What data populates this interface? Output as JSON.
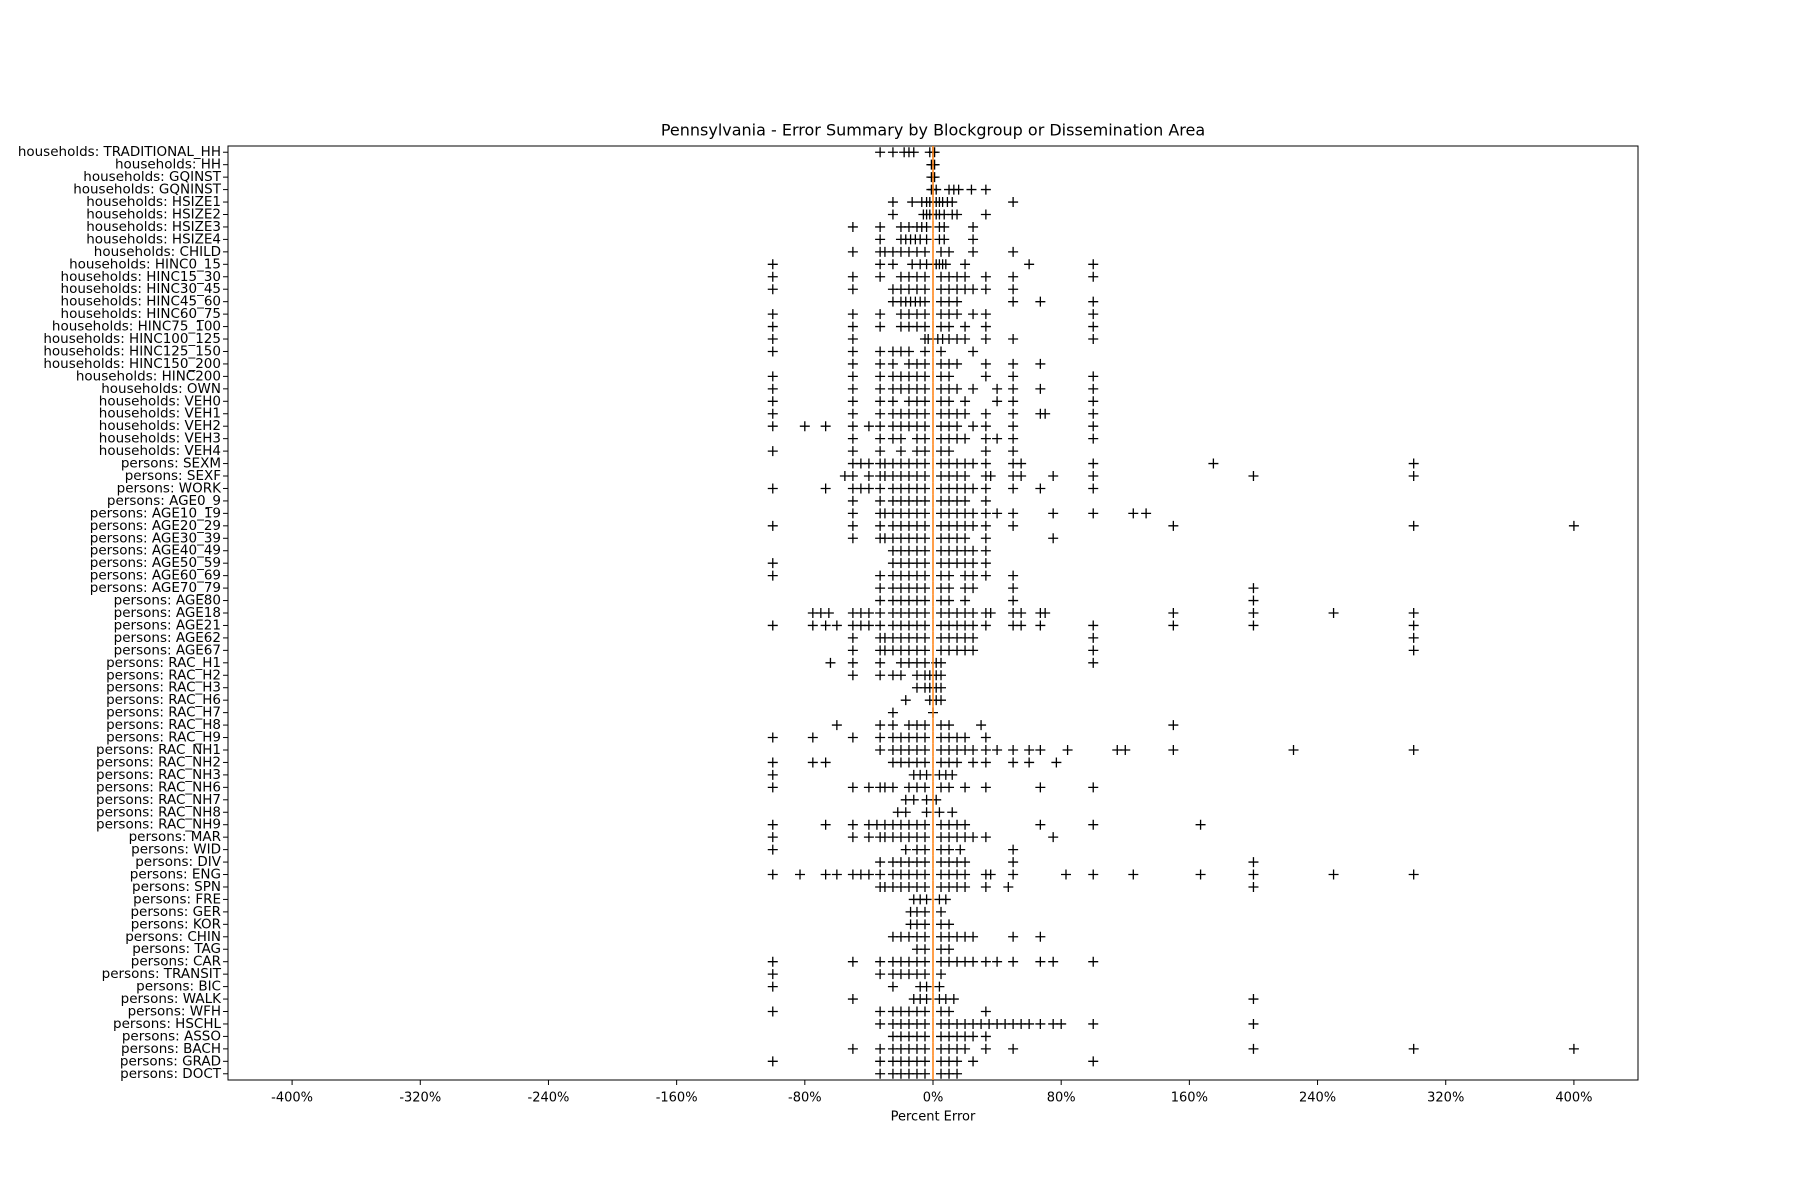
{
  "chart_data": {
    "type": "box",
    "title": "Pennsylvania - Error Summary by Blockgroup or Dissemination Area",
    "x_label": "Percent Error",
    "xlim": [
      -440,
      440
    ],
    "xticks": [
      {
        "value": -400,
        "label": "-400%"
      },
      {
        "value": -320,
        "label": "-320%"
      },
      {
        "value": -240,
        "label": "-240%"
      },
      {
        "value": -160,
        "label": "-160%"
      },
      {
        "value": -80,
        "label": "-80%"
      },
      {
        "value": 0,
        "label": "0%"
      },
      {
        "value": 80,
        "label": "80%"
      },
      {
        "value": 160,
        "label": "160%"
      },
      {
        "value": 240,
        "label": "240%"
      },
      {
        "value": 320,
        "label": "320%"
      },
      {
        "value": 400,
        "label": "400%"
      }
    ],
    "marker_color": "#000000",
    "median_color": "#ff7f0e",
    "categories": [
      "households: TRADITIONAL_HH",
      "households: HH",
      "households: GQINST",
      "households: GQNINST",
      "households: HSIZE1",
      "households: HSIZE2",
      "households: HSIZE3",
      "households: HSIZE4",
      "households: CHILD",
      "households: HINC0_15",
      "households: HINC15_30",
      "households: HINC30_45",
      "households: HINC45_60",
      "households: HINC60_75",
      "households: HINC75_100",
      "households: HINC100_125",
      "households: HINC125_150",
      "households: HINC150_200",
      "households: HINC200",
      "households: OWN",
      "households: VEH0",
      "households: VEH1",
      "households: VEH2",
      "households: VEH3",
      "households: VEH4",
      "persons: SEXM",
      "persons: SEXF",
      "persons: WORK",
      "persons: AGE0_9",
      "persons: AGE10_19",
      "persons: AGE20_29",
      "persons: AGE30_39",
      "persons: AGE40_49",
      "persons: AGE50_59",
      "persons: AGE60_69",
      "persons: AGE70_79",
      "persons: AGE80",
      "persons: AGE18",
      "persons: AGE21",
      "persons: AGE62",
      "persons: AGE67",
      "persons: RAC_H1",
      "persons: RAC_H2",
      "persons: RAC_H3",
      "persons: RAC_H6",
      "persons: RAC_H7",
      "persons: RAC_H8",
      "persons: RAC_H9",
      "persons: RAC_NH1",
      "persons: RAC_NH2",
      "persons: RAC_NH3",
      "persons: RAC_NH6",
      "persons: RAC_NH7",
      "persons: RAC_NH8",
      "persons: RAC_NH9",
      "persons: MAR",
      "persons: WID",
      "persons: DIV",
      "persons: ENG",
      "persons: SPN",
      "persons: FRE",
      "persons: GER",
      "persons: KOR",
      "persons: CHIN",
      "persons: TAG",
      "persons: CAR",
      "persons: TRANSIT",
      "persons: BIC",
      "persons: WALK",
      "persons: WFH",
      "persons: HSCHL",
      "persons: ASSO",
      "persons: BACH",
      "persons: GRAD",
      "persons: DOCT"
    ],
    "medians": [
      0,
      0,
      0,
      0,
      0,
      0,
      0,
      0,
      0,
      0,
      0,
      0,
      0,
      0,
      0,
      0,
      0,
      0,
      0,
      0,
      0,
      0,
      0,
      0,
      0,
      0,
      0,
      0,
      0,
      0,
      0,
      0,
      0,
      0,
      0,
      0,
      0,
      0,
      0,
      0,
      0,
      0,
      0,
      0,
      0,
      0,
      0,
      0,
      0,
      0,
      0,
      0,
      0,
      0,
      0,
      0,
      0,
      0,
      0,
      0,
      0,
      0,
      0,
      0,
      0,
      0,
      0,
      0,
      0,
      0,
      0,
      0,
      0,
      0,
      0
    ],
    "points": [
      [
        -33,
        -25,
        -18,
        -15,
        -12,
        -2,
        0,
        1
      ],
      [
        -1,
        0,
        1
      ],
      [
        -1,
        0,
        1
      ],
      [
        -1,
        0,
        2,
        10,
        13,
        16,
        24,
        33
      ],
      [
        -25,
        -13,
        -7,
        -4,
        -2,
        2,
        4,
        6,
        9,
        12,
        50
      ],
      [
        -25,
        -6,
        -4,
        -2,
        2,
        4,
        7,
        12,
        15,
        33
      ],
      [
        -50,
        -33,
        -20,
        -15,
        -10,
        -7,
        -4,
        4,
        7,
        25
      ],
      [
        -33,
        -20,
        -17,
        -14,
        -11,
        -8,
        -4,
        4,
        7,
        25
      ],
      [
        -50,
        -33,
        -30,
        -25,
        -20,
        -15,
        -10,
        -5,
        5,
        10,
        25,
        50
      ],
      [
        -100,
        -33,
        -25,
        -13,
        -8,
        -4,
        2,
        4,
        6,
        8,
        20,
        60,
        100
      ],
      [
        -100,
        -50,
        -33,
        -20,
        -15,
        -10,
        -5,
        5,
        10,
        15,
        20,
        33,
        50,
        100
      ],
      [
        -100,
        -50,
        -25,
        -20,
        -15,
        -10,
        -5,
        5,
        10,
        15,
        20,
        25,
        33,
        50
      ],
      [
        -25,
        -20,
        -17,
        -14,
        -11,
        -8,
        -5,
        5,
        10,
        15,
        50,
        67,
        100
      ],
      [
        -100,
        -50,
        -33,
        -20,
        -15,
        -10,
        -5,
        5,
        10,
        15,
        25,
        33,
        100
      ],
      [
        -100,
        -50,
        -33,
        -20,
        -15,
        -10,
        -5,
        5,
        10,
        20,
        33,
        100
      ],
      [
        -100,
        -50,
        -5,
        -3,
        3,
        6,
        10,
        15,
        20,
        33,
        50,
        100
      ],
      [
        -100,
        -50,
        -33,
        -25,
        -20,
        -15,
        -5,
        5,
        25
      ],
      [
        -50,
        -33,
        -25,
        -15,
        -10,
        -5,
        5,
        10,
        15,
        33,
        50,
        67
      ],
      [
        -100,
        -50,
        -33,
        -25,
        -20,
        -15,
        -10,
        -5,
        5,
        10,
        33,
        50,
        100
      ],
      [
        -100,
        -50,
        -33,
        -25,
        -20,
        -15,
        -10,
        -5,
        5,
        10,
        15,
        25,
        40,
        50,
        67,
        100
      ],
      [
        -100,
        -50,
        -33,
        -25,
        -15,
        -10,
        -5,
        5,
        10,
        20,
        40,
        50,
        100
      ],
      [
        -100,
        -50,
        -33,
        -25,
        -20,
        -15,
        -10,
        -5,
        5,
        10,
        15,
        20,
        33,
        50,
        67,
        70,
        100
      ],
      [
        -100,
        -80,
        -67,
        -50,
        -40,
        -33,
        -25,
        -20,
        -15,
        -10,
        -5,
        5,
        10,
        15,
        25,
        33,
        50,
        100
      ],
      [
        -50,
        -33,
        -25,
        -20,
        -10,
        -5,
        5,
        10,
        15,
        20,
        33,
        40,
        50,
        100
      ],
      [
        -100,
        -50,
        -33,
        -20,
        -10,
        -5,
        5,
        10,
        33,
        50
      ],
      [
        -50,
        -45,
        -40,
        -33,
        -30,
        -25,
        -20,
        -15,
        -10,
        -5,
        5,
        10,
        15,
        20,
        25,
        33,
        50,
        55,
        100,
        175,
        300
      ],
      [
        -55,
        -50,
        -40,
        -33,
        -30,
        -25,
        -20,
        -15,
        -10,
        -5,
        5,
        10,
        15,
        20,
        33,
        36,
        50,
        55,
        75,
        100,
        200,
        300
      ],
      [
        -100,
        -67,
        -50,
        -45,
        -40,
        -33,
        -25,
        -20,
        -15,
        -10,
        -5,
        5,
        10,
        15,
        20,
        25,
        33,
        50,
        67,
        100
      ],
      [
        -50,
        -33,
        -25,
        -20,
        -15,
        -10,
        -5,
        5,
        10,
        15,
        20,
        33
      ],
      [
        -50,
        -33,
        -30,
        -25,
        -20,
        -15,
        -10,
        -5,
        5,
        10,
        15,
        20,
        25,
        33,
        40,
        50,
        75,
        100,
        125,
        133
      ],
      [
        -100,
        -50,
        -33,
        -25,
        -20,
        -15,
        -10,
        -5,
        5,
        10,
        15,
        20,
        25,
        33,
        50,
        150,
        300,
        400
      ],
      [
        -50,
        -33,
        -30,
        -25,
        -20,
        -15,
        -10,
        -5,
        5,
        10,
        15,
        20,
        33,
        75
      ],
      [
        -25,
        -20,
        -15,
        -10,
        -5,
        5,
        10,
        15,
        20,
        25,
        33
      ],
      [
        -100,
        -25,
        -20,
        -15,
        -10,
        -5,
        5,
        10,
        15,
        20,
        25,
        33
      ],
      [
        -100,
        -33,
        -25,
        -20,
        -15,
        -10,
        -5,
        5,
        10,
        20,
        25,
        33,
        50
      ],
      [
        -33,
        -25,
        -20,
        -15,
        -10,
        -5,
        5,
        10,
        20,
        25,
        50,
        200
      ],
      [
        -33,
        -25,
        -20,
        -15,
        -10,
        -5,
        5,
        10,
        20,
        50,
        200
      ],
      [
        -75,
        -70,
        -65,
        -50,
        -45,
        -40,
        -33,
        -25,
        -20,
        -15,
        -10,
        -5,
        5,
        10,
        15,
        20,
        25,
        33,
        36,
        50,
        55,
        67,
        70,
        150,
        200,
        250,
        300
      ],
      [
        -100,
        -75,
        -67,
        -60,
        -50,
        -45,
        -40,
        -33,
        -25,
        -20,
        -15,
        -10,
        -5,
        5,
        10,
        15,
        20,
        25,
        33,
        50,
        55,
        67,
        100,
        150,
        200,
        300
      ],
      [
        -50,
        -33,
        -30,
        -25,
        -20,
        -15,
        -10,
        -5,
        5,
        10,
        15,
        20,
        25,
        100,
        300
      ],
      [
        -50,
        -33,
        -30,
        -25,
        -20,
        -15,
        -10,
        -5,
        5,
        10,
        15,
        20,
        25,
        100,
        300
      ],
      [
        -64,
        -50,
        -33,
        -20,
        -15,
        -10,
        -5,
        2,
        5,
        100
      ],
      [
        -50,
        -33,
        -25,
        -20,
        -10,
        -5,
        -2,
        2,
        5
      ],
      [
        -10,
        -5,
        -2,
        2,
        5
      ],
      [
        -17,
        -2,
        2,
        5
      ],
      [
        -25,
        0
      ],
      [
        -60,
        -33,
        -25,
        -15,
        -10,
        -5,
        5,
        10,
        30,
        150
      ],
      [
        -100,
        -75,
        -50,
        -33,
        -25,
        -20,
        -15,
        -10,
        -5,
        5,
        10,
        15,
        20,
        33
      ],
      [
        -33,
        -25,
        -20,
        -15,
        -10,
        -5,
        5,
        10,
        15,
        20,
        25,
        33,
        40,
        50,
        60,
        67,
        84,
        115,
        120,
        150,
        225,
        300
      ],
      [
        -100,
        -75,
        -67,
        -25,
        -20,
        -15,
        -10,
        -5,
        5,
        10,
        15,
        25,
        33,
        50,
        60,
        77
      ],
      [
        -100,
        -12,
        -8,
        -4,
        4,
        8,
        12
      ],
      [
        -100,
        -50,
        -40,
        -33,
        -30,
        -25,
        -15,
        -10,
        -5,
        5,
        10,
        20,
        33,
        67,
        100
      ],
      [
        -17,
        -12,
        -4,
        2
      ],
      [
        -22,
        -17,
        -4,
        4,
        12
      ],
      [
        -100,
        -67,
        -50,
        -40,
        -35,
        -30,
        -25,
        -20,
        -15,
        -10,
        -5,
        5,
        10,
        15,
        20,
        67,
        100,
        167
      ],
      [
        -100,
        -50,
        -40,
        -33,
        -30,
        -25,
        -20,
        -15,
        -10,
        -5,
        5,
        10,
        15,
        20,
        25,
        33,
        75
      ],
      [
        -100,
        -17,
        -10,
        -5,
        5,
        10,
        17,
        50
      ],
      [
        -33,
        -25,
        -20,
        -15,
        -10,
        -5,
        5,
        10,
        15,
        20,
        50,
        200
      ],
      [
        -100,
        -83,
        -67,
        -60,
        -50,
        -45,
        -40,
        -33,
        -25,
        -20,
        -15,
        -10,
        -5,
        5,
        10,
        15,
        20,
        33,
        36,
        50,
        83,
        100,
        125,
        167,
        200,
        250,
        300
      ],
      [
        -33,
        -30,
        -25,
        -20,
        -15,
        -10,
        -5,
        5,
        10,
        15,
        20,
        33,
        47,
        200
      ],
      [
        -12,
        -8,
        -4,
        4,
        8
      ],
      [
        -14,
        -10,
        -5,
        5
      ],
      [
        -14,
        -10,
        -5,
        5,
        10
      ],
      [
        -25,
        -20,
        -15,
        -10,
        -5,
        5,
        10,
        15,
        20,
        25,
        50,
        67
      ],
      [
        -10,
        -5,
        5,
        10
      ],
      [
        -100,
        -50,
        -33,
        -25,
        -20,
        -15,
        -10,
        -5,
        5,
        10,
        15,
        20,
        25,
        33,
        40,
        50,
        67,
        75,
        100
      ],
      [
        -100,
        -33,
        -25,
        -20,
        -15,
        -10,
        -5,
        5
      ],
      [
        -100,
        -25,
        -8,
        -4,
        4
      ],
      [
        -50,
        -12,
        -8,
        -4,
        4,
        8,
        13,
        200
      ],
      [
        -100,
        -33,
        -25,
        -20,
        -15,
        -10,
        -5,
        5,
        10,
        33
      ],
      [
        -33,
        -25,
        -20,
        -15,
        -10,
        -5,
        5,
        10,
        15,
        20,
        25,
        30,
        35,
        40,
        45,
        50,
        55,
        60,
        67,
        75,
        80,
        100,
        200
      ],
      [
        -25,
        -20,
        -15,
        -10,
        -5,
        5,
        10,
        15,
        20,
        25,
        33
      ],
      [
        -50,
        -33,
        -25,
        -20,
        -15,
        -10,
        -5,
        5,
        10,
        15,
        20,
        33,
        50,
        200,
        300,
        400
      ],
      [
        -100,
        -33,
        -25,
        -20,
        -15,
        -10,
        -5,
        5,
        10,
        15,
        25,
        100
      ],
      [
        -33,
        -25,
        -20,
        -15,
        -10,
        -5,
        5,
        10,
        15
      ]
    ]
  }
}
